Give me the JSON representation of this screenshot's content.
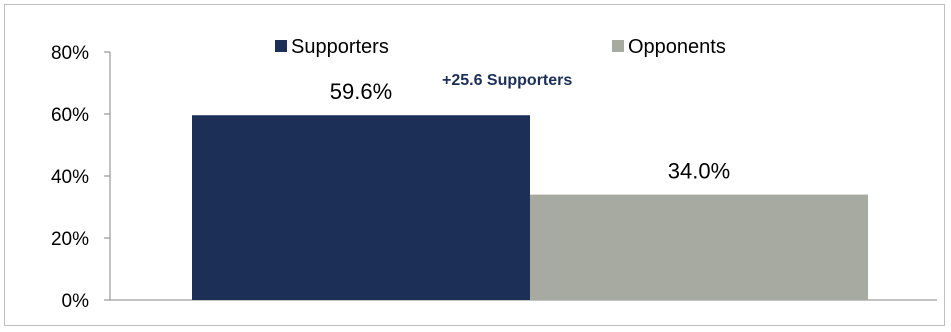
{
  "chart_data": {
    "type": "bar",
    "title": "",
    "xlabel": "",
    "ylabel": "",
    "categories": [
      "Supporters",
      "Opponents"
    ],
    "values": [
      59.6,
      34.0
    ],
    "data_labels": [
      "59.6%",
      "34.0%"
    ],
    "colors": [
      "#1b2f57",
      "#a7aaa0"
    ],
    "ylim": [
      0,
      80
    ],
    "y_ticks": [
      0,
      20,
      40,
      60,
      80
    ],
    "y_tick_labels": [
      "0%",
      "20%",
      "40%",
      "60%",
      "80%"
    ],
    "legend": {
      "placement": "top",
      "entries": [
        {
          "label": "Supporters",
          "color": "#1b2f57"
        },
        {
          "label": "Opponents",
          "color": "#a7aaa0"
        }
      ]
    },
    "annotation": {
      "text": "+25.6 Supporters",
      "color": "#1b2f57"
    },
    "grid": false
  }
}
